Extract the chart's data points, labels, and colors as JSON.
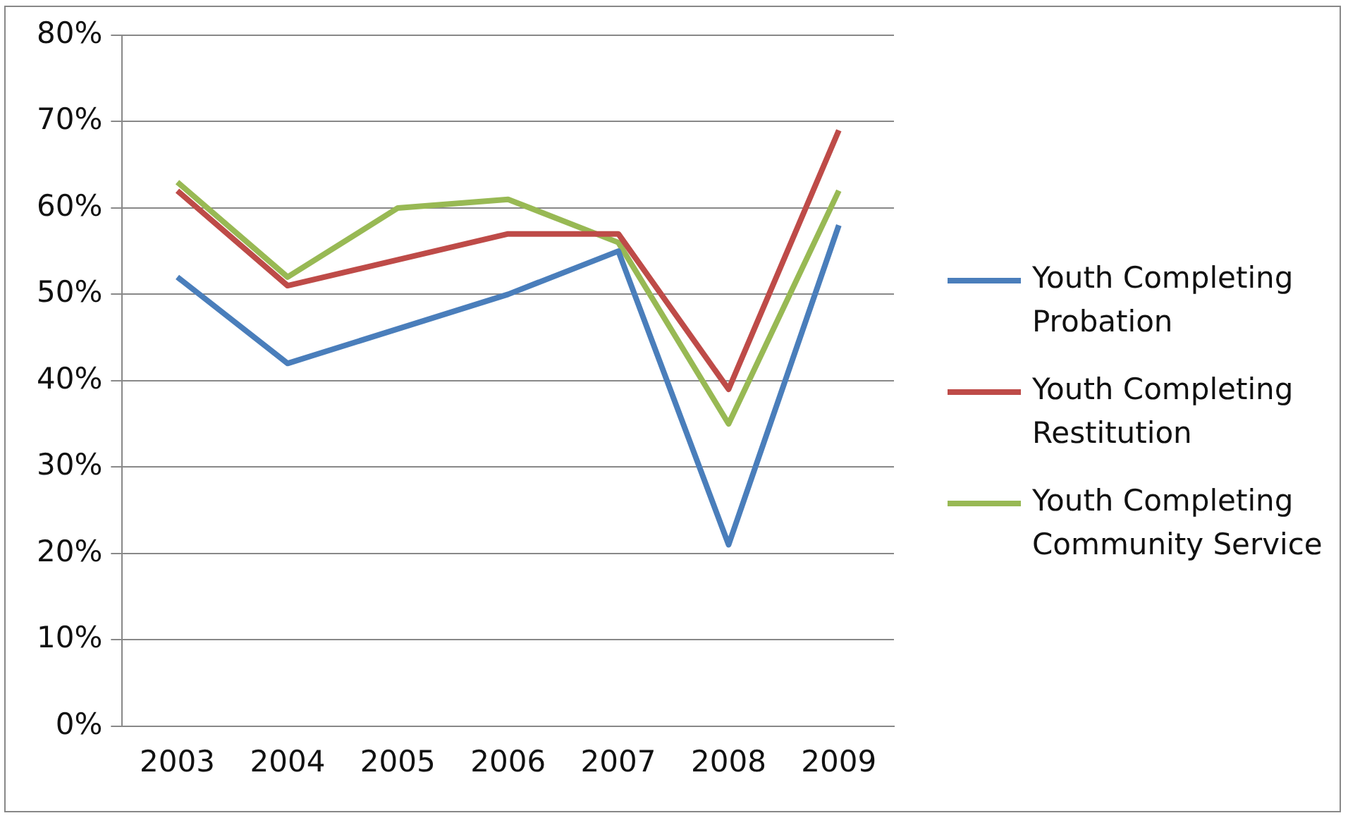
{
  "chart_data": {
    "type": "line",
    "categories": [
      "2003",
      "2004",
      "2005",
      "2006",
      "2007",
      "2008",
      "2009"
    ],
    "series": [
      {
        "name": "Youth Completing Probation",
        "color": "#4a7ebb",
        "values": [
          52,
          42,
          46,
          50,
          55,
          21,
          58
        ]
      },
      {
        "name": "Youth Completing Restitution",
        "color": "#be4b48",
        "values": [
          62,
          51,
          54,
          57,
          57,
          39,
          69
        ]
      },
      {
        "name": "Youth Completing Community Service",
        "color": "#98b954",
        "values": [
          63,
          52,
          60,
          61,
          56,
          35,
          62
        ]
      }
    ],
    "ylim": [
      0,
      80
    ],
    "yticks": [
      {
        "value": 0,
        "label": "0%"
      },
      {
        "value": 10,
        "label": "10%"
      },
      {
        "value": 20,
        "label": "20%"
      },
      {
        "value": 30,
        "label": "30%"
      },
      {
        "value": 40,
        "label": "40%"
      },
      {
        "value": 50,
        "label": "50%"
      },
      {
        "value": 60,
        "label": "60%"
      },
      {
        "value": 70,
        "label": "70%"
      },
      {
        "value": 80,
        "label": "80%"
      }
    ],
    "grid": "y",
    "legend": "right",
    "marker": "none",
    "line_style": "solid"
  }
}
